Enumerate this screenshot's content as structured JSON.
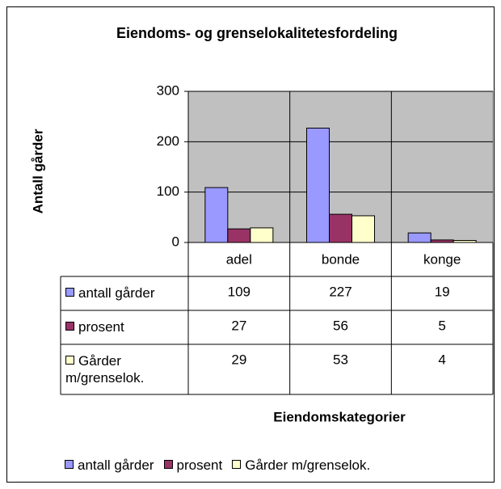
{
  "chart_data": {
    "type": "bar",
    "title": "Eiendoms- og grenselokalitetesfordeling",
    "y_axis_label": "Antall gårder",
    "x_axis_label": "Eiendomskategorier",
    "categories": [
      "adel",
      "bonde",
      "konge"
    ],
    "series": [
      {
        "name": "antall gårder",
        "color": "#9999ff",
        "values": [
          109,
          227,
          19
        ]
      },
      {
        "name": "prosent",
        "color": "#993366",
        "values": [
          27,
          56,
          5
        ]
      },
      {
        "name": "Gårder m/grenselok.",
        "color": "#ffffcc",
        "values": [
          29,
          53,
          4
        ]
      }
    ],
    "ylim": [
      0,
      300
    ],
    "yticks": [
      0,
      100,
      200,
      300
    ],
    "grid": true,
    "plot_background": "#c0c0c0",
    "data_table": true,
    "legend": "bottom"
  }
}
